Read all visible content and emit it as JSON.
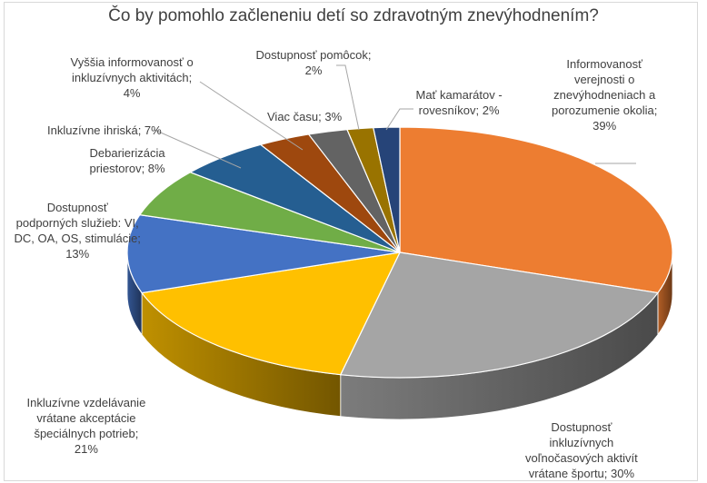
{
  "chart_data": {
    "type": "pie",
    "style": "3d",
    "title": "Čo by pomohlo začleneniu detí so zdravotným znevýhodnením?",
    "start": "top, clockwise",
    "slices": [
      {
        "label_lines": [
          "Informovanosť",
          "verejnosti o",
          "znevýhodneniach a",
          "porozumenie okolia;",
          "39%"
        ],
        "name": "Informovanosť verejnosti o znevýhodneniach a porozumenie okolia",
        "value": 39,
        "color": "#ED7D31"
      },
      {
        "label_lines": [
          "Dostupnosť",
          "inkluzívnych",
          "voľnočasových aktivít",
          "vrátane športu; 30%"
        ],
        "name": "Dostupnosť inkluzívnych voľnočasových aktivít vrátane športu",
        "value": 30,
        "color": "#A5A5A5"
      },
      {
        "label_lines": [
          "Inkluzívne vzdelávanie",
          "vrátane akceptácie",
          "špeciálnych potrieb;",
          "21%"
        ],
        "name": "Inkluzívne vzdelávanie vrátane akceptácie špeciálnych potrieb",
        "value": 21,
        "color": "#FFC000"
      },
      {
        "label_lines": [
          "Dostupnosť",
          "podporných služieb: VI,",
          "DC, OA, OS, stimulácie;",
          "13%"
        ],
        "name": "Dostupnosť podporných služieb: VI, DC, OA, OS, stimulácie",
        "value": 13,
        "color": "#4472C4"
      },
      {
        "label_lines": [
          "Debarierizácia",
          "priestorov; 8%"
        ],
        "name": "Debarierizácia priestorov",
        "value": 8,
        "color": "#70AD47"
      },
      {
        "label_lines": [
          "Inkluzívne ihriská; 7%"
        ],
        "name": "Inkluzívne ihriská",
        "value": 7,
        "color": "#255E91"
      },
      {
        "label_lines": [
          "Vyššia informovanosť o",
          "inkluzívnych aktivitách;",
          "4%"
        ],
        "name": "Vyššia informovanosť o inkluzívnych aktivitách",
        "value": 4,
        "color": "#9E480E"
      },
      {
        "label_lines": [
          "Viac času; 3%"
        ],
        "name": "Viac času",
        "value": 3,
        "color": "#636363"
      },
      {
        "label_lines": [
          "Dostupnosť pomôcok;",
          "2%"
        ],
        "name": "Dostupnosť pomôcok",
        "value": 2,
        "color": "#997300"
      },
      {
        "label_lines": [
          "Mať kamarátov -",
          "rovesníkov; 2%"
        ],
        "name": "Mať kamarátov - rovesníkov",
        "value": 2,
        "color": "#264478"
      }
    ]
  }
}
